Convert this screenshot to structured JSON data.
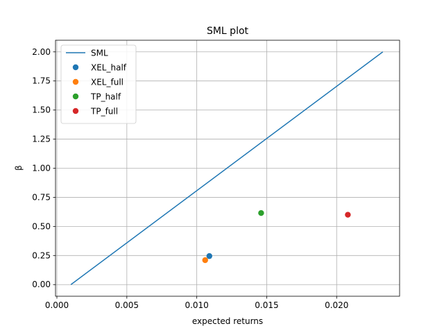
{
  "chart_data": {
    "type": "scatter",
    "title": "SML plot",
    "xlabel": "expected returns",
    "ylabel": "β",
    "xlim": [
      -0.0001,
      0.0245
    ],
    "ylim": [
      -0.1,
      2.1
    ],
    "xticks": [
      0.0,
      0.005,
      0.01,
      0.015,
      0.02
    ],
    "xtick_labels": [
      "0.000",
      "0.005",
      "0.010",
      "0.015",
      "0.020"
    ],
    "yticks": [
      0.0,
      0.25,
      0.5,
      0.75,
      1.0,
      1.25,
      1.5,
      1.75,
      2.0
    ],
    "ytick_labels": [
      "0.00",
      "0.25",
      "0.50",
      "0.75",
      "1.00",
      "1.25",
      "1.50",
      "1.75",
      "2.00"
    ],
    "grid": true,
    "legend_position": "upper-left",
    "line": {
      "name": "SML",
      "color": "#1f77b4",
      "x": [
        0.001,
        0.0233
      ],
      "y": [
        0.0,
        2.0
      ]
    },
    "series": [
      {
        "name": "XEL_half",
        "color": "#1f77b4",
        "x": [
          0.0109
        ],
        "y": [
          0.245
        ]
      },
      {
        "name": "XEL_full",
        "color": "#ff7f0e",
        "x": [
          0.0106
        ],
        "y": [
          0.21
        ]
      },
      {
        "name": "TP_half",
        "color": "#2ca02c",
        "x": [
          0.0146
        ],
        "y": [
          0.615
        ]
      },
      {
        "name": "TP_full",
        "color": "#d62728",
        "x": [
          0.0208
        ],
        "y": [
          0.6
        ]
      }
    ]
  }
}
